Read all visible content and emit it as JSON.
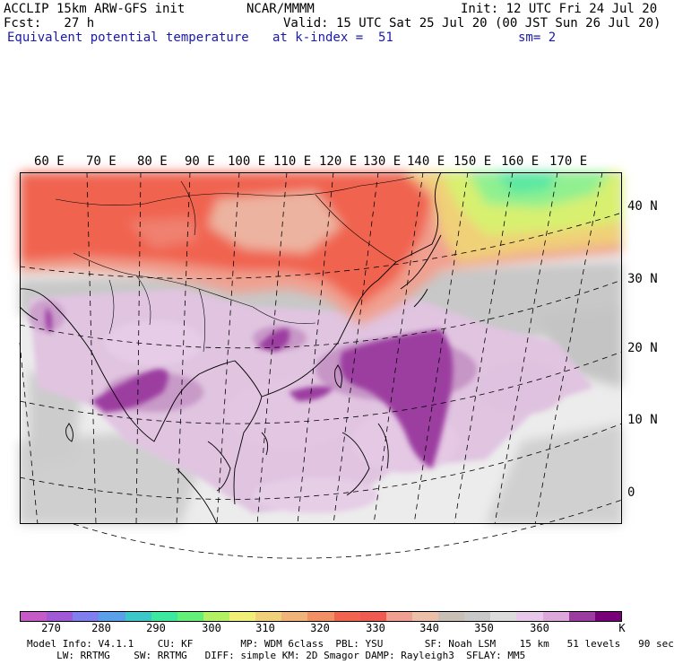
{
  "header": {
    "model_line": "ACCLIP 15km ARW-GFS init",
    "center": "NCAR/MMMM",
    "init": "Init: 12 UTC Fri 24 Jul 20",
    "fcst": "Fcst:   27 h",
    "valid": "Valid: 15 UTC Sat 25 Jul 20 (00 JST Sun 26 Jul 20)",
    "field": "Equivalent potential temperature",
    "level": "at k-index =  51",
    "smoothing": "sm= 2"
  },
  "map": {
    "lon_labels": [
      "60 E",
      "70 E",
      "80 E",
      "90 E",
      "100 E",
      "110 E",
      "120 E",
      "130 E",
      "140 E",
      "150 E",
      "160 E",
      "170 E"
    ],
    "lat_labels": [
      "40 N",
      "30 N",
      "20 N",
      "10 N",
      "0"
    ]
  },
  "colorbar": {
    "colors": [
      "#c65ac6",
      "#a05ad8",
      "#7f7ff0",
      "#5aa0e8",
      "#3cc8c8",
      "#3ce8a0",
      "#64f078",
      "#b4f064",
      "#f0f078",
      "#f0d078",
      "#f0b478",
      "#f09064",
      "#f06450",
      "#f05a50",
      "#f0a090",
      "#ecc0a8",
      "#c8c0b4",
      "#c8c8c8",
      "#dcdcdc",
      "#e8c8e8",
      "#dca8dc",
      "#9c3ca0",
      "#780078"
    ],
    "labels": [
      "270",
      "280",
      "290",
      "300",
      "310",
      "320",
      "330",
      "340",
      "350",
      "360"
    ],
    "unit": "K"
  },
  "footer": {
    "line1": "Model Info: V4.1.1    CU: KF        MP: WDM 6class  PBL: YSU       SF: Noah LSM    15 km   51 levels   90 sec",
    "line2": "     LW: RRTMG    SW: RRTMG   DIFF: simple KM: 2D Smagor DAMP: Rayleigh3  SFLAY: MM5"
  }
}
